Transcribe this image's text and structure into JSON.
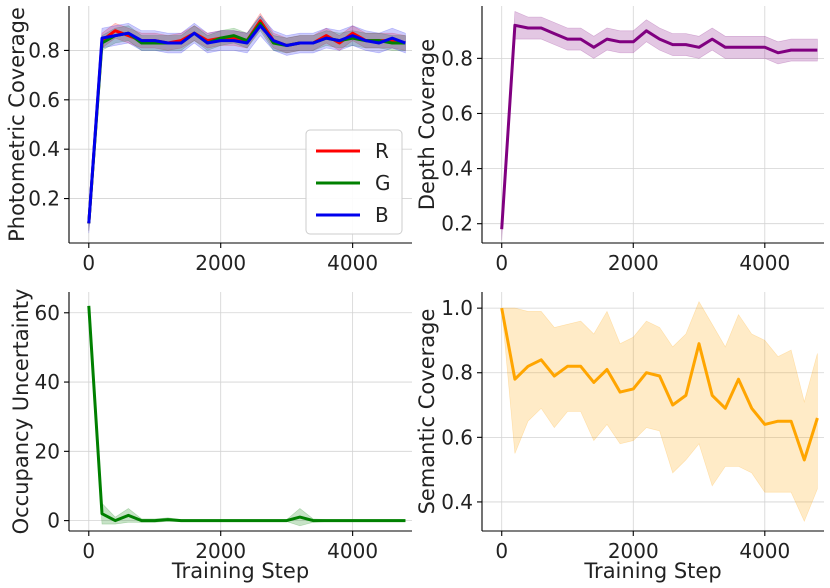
{
  "chart_data": [
    {
      "type": "line",
      "ylabel": "Photometric Coverage",
      "xlabel": "",
      "xlim": [
        -300,
        4900
      ],
      "ylim": [
        0.02,
        0.98
      ],
      "xticks": [
        0,
        2000,
        4000
      ],
      "yticks": [
        0.2,
        0.4,
        0.6,
        0.8
      ],
      "ytick_labels": [
        "0.2",
        "0.4",
        "0.6",
        "0.8"
      ],
      "grid": true,
      "legend": "bottom-right",
      "x": [
        0,
        200,
        400,
        600,
        800,
        1000,
        1200,
        1400,
        1600,
        1800,
        2000,
        2200,
        2400,
        2600,
        2800,
        3000,
        3200,
        3400,
        3600,
        3800,
        4000,
        4200,
        4400,
        4600,
        4800
      ],
      "series": [
        {
          "name": "R",
          "color": "#ff0000",
          "values": [
            0.1,
            0.84,
            0.88,
            0.86,
            0.84,
            0.84,
            0.83,
            0.84,
            0.87,
            0.84,
            0.85,
            0.85,
            0.84,
            0.92,
            0.84,
            0.82,
            0.83,
            0.83,
            0.86,
            0.83,
            0.87,
            0.84,
            0.84,
            0.84,
            0.83
          ],
          "band": [
            0.03,
            0.03,
            0.03,
            0.03,
            0.03,
            0.03,
            0.03,
            0.03,
            0.03,
            0.03,
            0.03,
            0.03,
            0.03,
            0.03,
            0.03,
            0.03,
            0.03,
            0.03,
            0.03,
            0.03,
            0.03,
            0.03,
            0.03,
            0.03,
            0.03
          ]
        },
        {
          "name": "G",
          "color": "#008000",
          "values": [
            0.1,
            0.83,
            0.86,
            0.87,
            0.83,
            0.83,
            0.83,
            0.83,
            0.87,
            0.83,
            0.85,
            0.86,
            0.84,
            0.91,
            0.83,
            0.82,
            0.83,
            0.83,
            0.85,
            0.84,
            0.85,
            0.84,
            0.84,
            0.83,
            0.83
          ],
          "band": [
            0.03,
            0.03,
            0.03,
            0.03,
            0.03,
            0.03,
            0.03,
            0.03,
            0.03,
            0.03,
            0.03,
            0.03,
            0.03,
            0.03,
            0.03,
            0.03,
            0.03,
            0.03,
            0.03,
            0.03,
            0.03,
            0.03,
            0.03,
            0.03,
            0.03
          ]
        },
        {
          "name": "B",
          "color": "#0000ee",
          "values": [
            0.1,
            0.85,
            0.86,
            0.87,
            0.84,
            0.84,
            0.83,
            0.83,
            0.87,
            0.83,
            0.84,
            0.84,
            0.83,
            0.9,
            0.84,
            0.82,
            0.83,
            0.83,
            0.85,
            0.84,
            0.86,
            0.84,
            0.83,
            0.85,
            0.83
          ],
          "band": [
            0.04,
            0.04,
            0.04,
            0.04,
            0.04,
            0.04,
            0.04,
            0.04,
            0.04,
            0.04,
            0.04,
            0.04,
            0.04,
            0.04,
            0.04,
            0.04,
            0.04,
            0.04,
            0.04,
            0.04,
            0.04,
            0.04,
            0.04,
            0.04,
            0.04
          ]
        }
      ]
    },
    {
      "type": "line",
      "ylabel": "Depth Coverage",
      "xlabel": "",
      "xlim": [
        -300,
        4900
      ],
      "ylim": [
        0.13,
        0.99
      ],
      "xticks": [
        0,
        2000,
        4000
      ],
      "yticks": [
        0.2,
        0.4,
        0.6,
        0.8
      ],
      "ytick_labels": [
        "0.2",
        "0.4",
        "0.6",
        "0.8"
      ],
      "grid": true,
      "x": [
        0,
        200,
        400,
        600,
        800,
        1000,
        1200,
        1400,
        1600,
        1800,
        2000,
        2200,
        2400,
        2600,
        2800,
        3000,
        3200,
        3400,
        3600,
        3800,
        4000,
        4200,
        4400,
        4600,
        4800
      ],
      "series": [
        {
          "name": "Depth",
          "color": "#800080",
          "values": [
            0.18,
            0.92,
            0.91,
            0.91,
            0.89,
            0.87,
            0.87,
            0.84,
            0.87,
            0.86,
            0.86,
            0.9,
            0.87,
            0.85,
            0.85,
            0.84,
            0.87,
            0.84,
            0.84,
            0.84,
            0.84,
            0.82,
            0.83,
            0.83,
            0.83
          ],
          "band": [
            0.04,
            0.05,
            0.04,
            0.04,
            0.04,
            0.04,
            0.04,
            0.04,
            0.04,
            0.04,
            0.04,
            0.04,
            0.04,
            0.04,
            0.04,
            0.04,
            0.04,
            0.04,
            0.04,
            0.04,
            0.04,
            0.04,
            0.04,
            0.04,
            0.04
          ]
        }
      ]
    },
    {
      "type": "line",
      "ylabel": "Occupancy Uncertainty",
      "xlabel": "Training Step",
      "xlim": [
        -300,
        4900
      ],
      "ylim": [
        -3,
        66
      ],
      "xticks": [
        0,
        2000,
        4000
      ],
      "yticks": [
        0,
        20,
        40,
        60
      ],
      "ytick_labels": [
        "0",
        "20",
        "40",
        "60"
      ],
      "grid": true,
      "x": [
        0,
        200,
        400,
        600,
        800,
        1000,
        1200,
        1400,
        1600,
        1800,
        2000,
        2200,
        2400,
        2600,
        2800,
        3000,
        3200,
        3400,
        3600,
        3800,
        4000,
        4200,
        4400,
        4600,
        4800
      ],
      "series": [
        {
          "name": "Occupancy",
          "color": "#008000",
          "values": [
            62,
            2,
            0,
            1.5,
            0,
            0,
            0.3,
            0,
            0,
            0,
            0,
            0,
            0,
            0,
            0,
            0,
            1,
            0,
            0,
            0,
            0,
            0,
            0,
            0,
            0
          ],
          "band": [
            0,
            3,
            1,
            2,
            0.5,
            0.5,
            0.5,
            0.3,
            0.3,
            0.3,
            0.3,
            0.3,
            0.3,
            0.3,
            0.3,
            0.3,
            2.5,
            0.5,
            0.3,
            0.3,
            0.3,
            0.3,
            0.3,
            0.3,
            0.3
          ]
        }
      ]
    },
    {
      "type": "line",
      "ylabel": "Semantic Coverage",
      "xlabel": "Training Step",
      "xlim": [
        -300,
        4900
      ],
      "ylim": [
        0.31,
        1.05
      ],
      "xticks": [
        0,
        2000,
        4000
      ],
      "yticks": [
        0.4,
        0.6,
        0.8,
        1.0
      ],
      "ytick_labels": [
        "0.4",
        "0.6",
        "0.8",
        "1.0"
      ],
      "grid": true,
      "x": [
        0,
        200,
        400,
        600,
        800,
        1000,
        1200,
        1400,
        1600,
        1800,
        2000,
        2200,
        2400,
        2600,
        2800,
        3000,
        3200,
        3400,
        3600,
        3800,
        4000,
        4200,
        4400,
        4600,
        4800
      ],
      "series": [
        {
          "name": "Semantic",
          "color": "#ffa500",
          "values": [
            1.0,
            0.78,
            0.82,
            0.84,
            0.79,
            0.82,
            0.82,
            0.77,
            0.81,
            0.74,
            0.75,
            0.8,
            0.79,
            0.7,
            0.73,
            0.89,
            0.73,
            0.69,
            0.78,
            0.69,
            0.64,
            0.65,
            0.65,
            0.53,
            0.66
          ],
          "lower": [
            1.0,
            0.55,
            0.65,
            0.69,
            0.63,
            0.68,
            0.68,
            0.59,
            0.64,
            0.58,
            0.59,
            0.63,
            0.62,
            0.49,
            0.53,
            0.58,
            0.45,
            0.51,
            0.51,
            0.49,
            0.43,
            0.43,
            0.43,
            0.34,
            0.44
          ],
          "upper": [
            1.0,
            1.0,
            0.99,
            0.99,
            0.94,
            0.95,
            0.96,
            0.92,
            0.99,
            0.89,
            0.91,
            0.96,
            0.94,
            0.88,
            0.92,
            1.02,
            0.95,
            0.88,
            0.98,
            0.92,
            0.9,
            0.85,
            0.87,
            0.71,
            0.86
          ]
        }
      ]
    }
  ]
}
